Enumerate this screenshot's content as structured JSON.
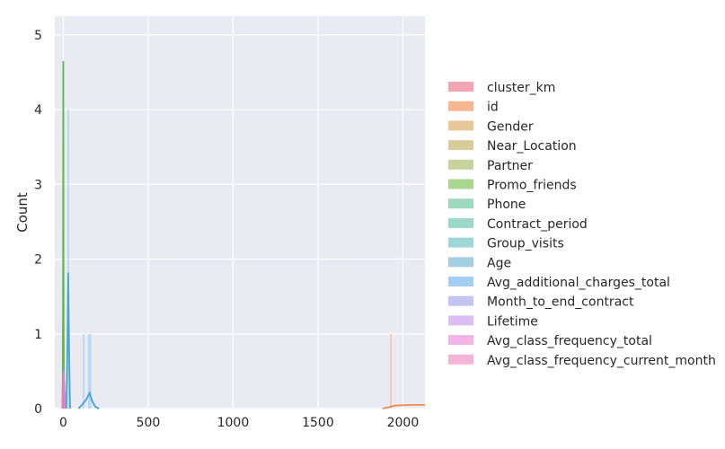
{
  "chart_data": {
    "type": "histogram",
    "title": "",
    "xlabel": "",
    "ylabel": "Count",
    "xlim": [
      -50,
      2130
    ],
    "ylim": [
      0,
      5.25
    ],
    "x_ticks": [
      0,
      500,
      1000,
      1500,
      2000
    ],
    "y_ticks": [
      0,
      1,
      2,
      3,
      4,
      5
    ],
    "grid": true,
    "legend_position": "right",
    "series": [
      {
        "name": "cluster_km",
        "color": "#f4a6b4",
        "line_color": "#e8707f",
        "bars": [
          {
            "x": 0.5,
            "h": 1.3
          }
        ],
        "kde": [
          [
            -6,
            0
          ],
          [
            -3,
            0.4
          ],
          [
            0,
            1.3
          ],
          [
            3,
            0.4
          ],
          [
            6,
            0
          ]
        ]
      },
      {
        "name": "id",
        "color": "#f7b690",
        "line_color": "#ee8a4f",
        "bars": [
          {
            "x": 1930,
            "h": 1.0
          }
        ],
        "kde": [
          [
            1880,
            0
          ],
          [
            1920,
            0.02
          ],
          [
            1950,
            0.04
          ],
          [
            2000,
            0.045
          ],
          [
            2050,
            0.05
          ],
          [
            2130,
            0.05
          ]
        ]
      },
      {
        "name": "Gender",
        "color": "#e8c796",
        "line_color": "#c9a160",
        "bars": [],
        "kde": [
          [
            -4,
            0
          ],
          [
            0,
            0.5
          ],
          [
            4,
            0
          ]
        ]
      },
      {
        "name": "Near_Location",
        "color": "#d8cd98",
        "line_color": "#b8a84e",
        "bars": [],
        "kde": [
          [
            -4,
            0
          ],
          [
            0.5,
            0.7
          ],
          [
            4,
            0
          ]
        ]
      },
      {
        "name": "Partner",
        "color": "#c7d39c",
        "line_color": "#9fb255",
        "bars": [],
        "kde": [
          [
            -4,
            0
          ],
          [
            0.5,
            0.5
          ],
          [
            4,
            0
          ]
        ]
      },
      {
        "name": "Promo_friends",
        "color": "#a9d790",
        "line_color": "#58b84a",
        "bars": [
          {
            "x": 0,
            "h": 2.5
          }
        ],
        "kde": [
          [
            -3,
            0
          ],
          [
            -1,
            2.0
          ],
          [
            0,
            4.65
          ],
          [
            1,
            2.0
          ],
          [
            3,
            0
          ]
        ]
      },
      {
        "name": "Phone",
        "color": "#9ed9bd",
        "line_color": "#52b98a",
        "bars": [],
        "kde": [
          [
            -4,
            0
          ],
          [
            1,
            0.6
          ],
          [
            4,
            0
          ]
        ]
      },
      {
        "name": "Contract_period",
        "color": "#9ad8c9",
        "line_color": "#4cb8a0",
        "bars": [],
        "kde": [
          [
            -4,
            0
          ],
          [
            3,
            0.4
          ],
          [
            12,
            0
          ]
        ]
      },
      {
        "name": "Group_visits",
        "color": "#9ed8d6",
        "line_color": "#4cb6b3",
        "bars": [],
        "kde": [
          [
            -4,
            0
          ],
          [
            0.5,
            0.5
          ],
          [
            4,
            0
          ]
        ]
      },
      {
        "name": "Age",
        "color": "#a3d0e0",
        "line_color": "#4aa7c9",
        "bars": [
          {
            "x": 29,
            "h": 4.0
          }
        ],
        "kde": [
          [
            18,
            0
          ],
          [
            24,
            0.8
          ],
          [
            29,
            1.82
          ],
          [
            34,
            0.8
          ],
          [
            40,
            0
          ]
        ]
      },
      {
        "name": "Avg_additional_charges_total",
        "color": "#a3cff4",
        "line_color": "#3b9fe8",
        "bars": [
          {
            "x": 120,
            "h": 1.0
          },
          {
            "x": 150,
            "h": 1.0
          },
          {
            "x": 160,
            "h": 1.0
          }
        ],
        "kde": [
          [
            90,
            0
          ],
          [
            110,
            0.05
          ],
          [
            135,
            0.12
          ],
          [
            155,
            0.21
          ],
          [
            170,
            0.1
          ],
          [
            190,
            0.02
          ],
          [
            210,
            0
          ]
        ]
      },
      {
        "name": "Month_to_end_contract",
        "color": "#c4c4f2",
        "line_color": "#8c8ce6",
        "bars": [],
        "kde": [
          [
            -4,
            0
          ],
          [
            3,
            0.4
          ],
          [
            12,
            0
          ]
        ]
      },
      {
        "name": "Lifetime",
        "color": "#dcbdf4",
        "line_color": "#b784ea",
        "bars": [],
        "kde": [
          [
            -4,
            0
          ],
          [
            3,
            0.4
          ],
          [
            10,
            0
          ]
        ]
      },
      {
        "name": "Avg_class_frequency_total",
        "color": "#f2b5e8",
        "line_color": "#e57fd5",
        "bars": [],
        "kde": [
          [
            -4,
            0
          ],
          [
            2,
            0.5
          ],
          [
            6,
            0
          ]
        ]
      },
      {
        "name": "Avg_class_frequency_current_month",
        "color": "#f5b3d7",
        "line_color": "#e87fbb",
        "bars": [],
        "kde": [
          [
            -4,
            0
          ],
          [
            2,
            0.45
          ],
          [
            6,
            0
          ]
        ]
      }
    ]
  }
}
